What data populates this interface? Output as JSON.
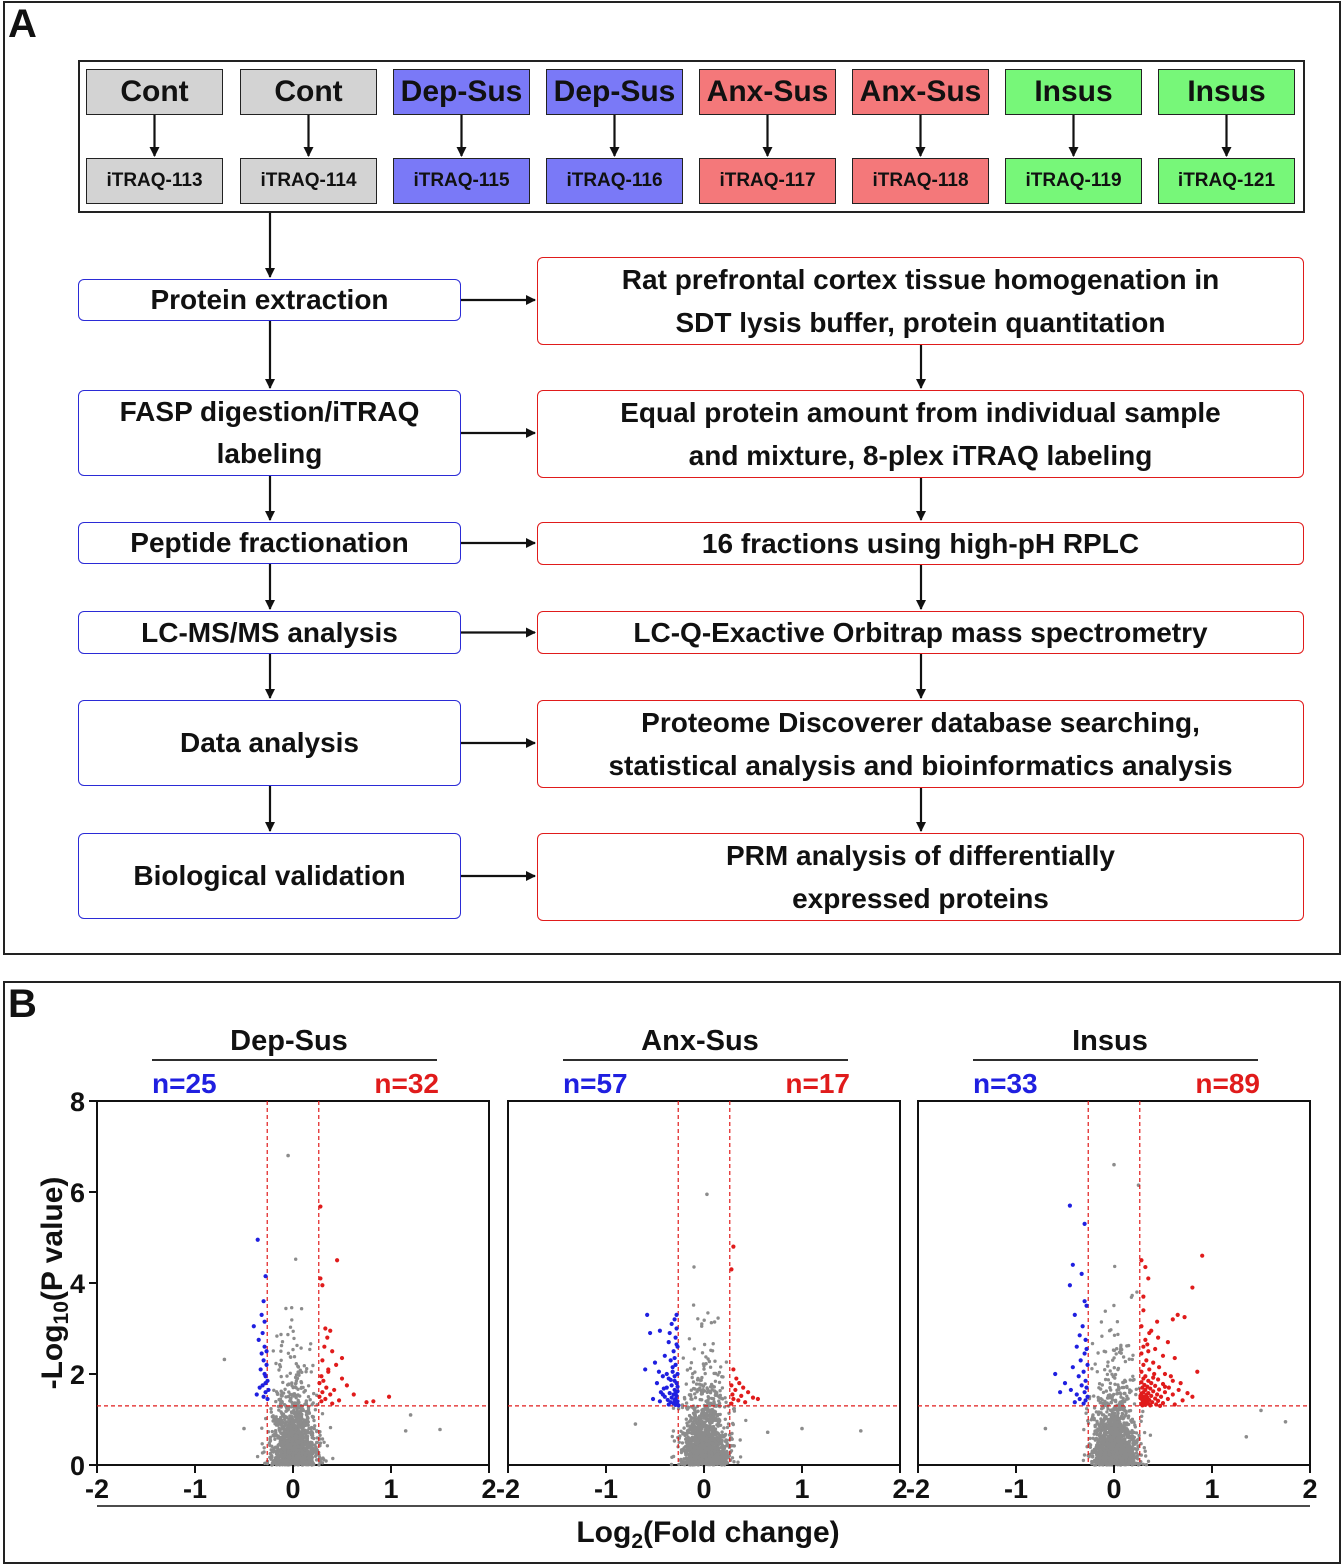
{
  "panel_a": {
    "letter": "A",
    "groups": [
      {
        "name": "Cont",
        "label": "iTRAQ-113",
        "color": "#d3d3d3"
      },
      {
        "name": "Cont",
        "label": "iTRAQ-114",
        "color": "#d3d3d3"
      },
      {
        "name": "Dep-Sus",
        "label": "iTRAQ-115",
        "color": "#7a79f7"
      },
      {
        "name": "Dep-Sus",
        "label": "iTRAQ-116",
        "color": "#7a79f7"
      },
      {
        "name": "Anx-Sus",
        "label": "iTRAQ-117",
        "color": "#f4787a"
      },
      {
        "name": "Anx-Sus",
        "label": "iTRAQ-118",
        "color": "#f4787a"
      },
      {
        "name": "Insus",
        "label": "iTRAQ-119",
        "color": "#77f779"
      },
      {
        "name": "Insus",
        "label": "iTRAQ-121",
        "color": "#77f779"
      }
    ],
    "steps": [
      {
        "title": [
          "Protein extraction"
        ],
        "detail": [
          "Rat prefrontal cortex tissue homogenation in",
          "SDT lysis buffer, protein quantitation"
        ]
      },
      {
        "title": [
          "FASP digestion/iTRAQ",
          "labeling"
        ],
        "detail": [
          "Equal protein amount from individual sample",
          "and mixture, 8-plex iTRAQ labeling"
        ]
      },
      {
        "title": [
          "Peptide fractionation"
        ],
        "detail": [
          "16 fractions using high-pH RPLC"
        ]
      },
      {
        "title": [
          "LC-MS/MS analysis"
        ],
        "detail": [
          "LC-Q-Exactive Orbitrap mass spectrometry"
        ]
      },
      {
        "title": [
          "Data analysis"
        ],
        "detail": [
          "Proteome Discoverer database searching,",
          "statistical analysis and bioinformatics analysis"
        ]
      },
      {
        "title": [
          "Biological validation"
        ],
        "detail": [
          "PRM analysis of differentially",
          "expressed proteins"
        ]
      }
    ]
  },
  "panel_b": {
    "letter": "B",
    "y_axis_label": "-Log10(P value)",
    "x_axis_label": "Log2(Fold change)",
    "colors": {
      "down": "#1f1fe0",
      "up": "#e01b1b",
      "ns": "#8c8c8c",
      "threshold": "#e01b1b"
    }
  },
  "chart_data": [
    {
      "type": "scatter",
      "title": "Dep-Sus",
      "n_down": "n=25",
      "n_up": "n=32",
      "xlim": [
        -2,
        2
      ],
      "ylim": [
        0,
        8
      ],
      "xticks": [
        "-2",
        "-1",
        "0",
        "1",
        "2"
      ],
      "yticks": [
        "0",
        "2",
        "4",
        "6",
        "8"
      ],
      "fc_threshold": [
        -0.263,
        0.263
      ],
      "p_threshold": 1.3,
      "highlight_down": [
        [
          -0.36,
          4.95
        ],
        [
          -0.28,
          4.15
        ],
        [
          -0.3,
          3.6
        ],
        [
          -0.32,
          3.3
        ],
        [
          -0.29,
          3.15
        ],
        [
          -0.4,
          3.05
        ],
        [
          -0.31,
          2.9
        ],
        [
          -0.35,
          2.75
        ],
        [
          -0.29,
          2.6
        ],
        [
          -0.27,
          2.5
        ],
        [
          -0.3,
          2.3
        ],
        [
          -0.33,
          2.1
        ],
        [
          -0.28,
          1.95
        ],
        [
          -0.26,
          1.85
        ],
        [
          -0.31,
          1.75
        ],
        [
          -0.34,
          1.7
        ],
        [
          -0.28,
          1.6
        ],
        [
          -0.3,
          1.5
        ],
        [
          -0.26,
          1.45
        ],
        [
          -0.29,
          2.0
        ],
        [
          -0.27,
          2.2
        ],
        [
          -0.37,
          1.55
        ],
        [
          -0.32,
          2.45
        ],
        [
          -0.28,
          1.8
        ],
        [
          -0.25,
          1.65
        ]
      ],
      "highlight_up": [
        [
          0.28,
          5.68
        ],
        [
          0.45,
          4.5
        ],
        [
          0.28,
          4.1
        ],
        [
          0.3,
          3.95
        ],
        [
          0.33,
          3.0
        ],
        [
          0.38,
          2.95
        ],
        [
          0.35,
          2.8
        ],
        [
          0.32,
          2.6
        ],
        [
          0.4,
          2.5
        ],
        [
          0.3,
          2.3
        ],
        [
          0.44,
          2.2
        ],
        [
          0.36,
          2.1
        ],
        [
          0.29,
          1.95
        ],
        [
          0.31,
          1.85
        ],
        [
          0.5,
          1.9
        ],
        [
          0.27,
          1.8
        ],
        [
          0.34,
          1.7
        ],
        [
          0.42,
          1.65
        ],
        [
          0.3,
          1.6
        ],
        [
          0.55,
          1.75
        ],
        [
          0.38,
          1.55
        ],
        [
          0.27,
          1.5
        ],
        [
          0.62,
          1.55
        ],
        [
          0.33,
          1.45
        ],
        [
          0.47,
          1.42
        ],
        [
          0.29,
          1.4
        ],
        [
          0.75,
          1.38
        ],
        [
          0.4,
          1.35
        ],
        [
          0.98,
          1.5
        ],
        [
          0.82,
          1.4
        ],
        [
          0.36,
          2.05
        ],
        [
          0.5,
          2.35
        ]
      ],
      "extra_ns": [
        [
          -0.7,
          2.32
        ],
        [
          -0.05,
          6.8
        ],
        [
          1.2,
          1.1
        ],
        [
          1.5,
          0.78
        ],
        [
          -0.5,
          0.8
        ],
        [
          1.15,
          0.75
        ]
      ]
    },
    {
      "type": "scatter",
      "title": "Anx-Sus",
      "n_down": "n=57",
      "n_up": "n=17",
      "xlim": [
        -2,
        2
      ],
      "ylim": [
        0,
        8
      ],
      "xticks": [
        "-2",
        "-1",
        "0",
        "1",
        "2"
      ],
      "yticks": [
        "0",
        "2",
        "4",
        "6",
        "8"
      ],
      "fc_threshold": [
        -0.263,
        0.263
      ],
      "p_threshold": 1.3,
      "highlight_down": [
        [
          -0.28,
          3.3
        ],
        [
          -0.3,
          3.2
        ],
        [
          -0.33,
          3.1
        ],
        [
          -0.58,
          3.3
        ],
        [
          -0.55,
          2.9
        ],
        [
          -0.45,
          2.95
        ],
        [
          -0.36,
          2.7
        ],
        [
          -0.29,
          2.8
        ],
        [
          -0.31,
          2.5
        ],
        [
          -0.6,
          2.1
        ],
        [
          -0.27,
          2.6
        ],
        [
          -0.4,
          2.4
        ],
        [
          -0.34,
          2.3
        ],
        [
          -0.29,
          2.2
        ],
        [
          -0.5,
          2.25
        ],
        [
          -0.32,
          2.05
        ],
        [
          -0.27,
          2.0
        ],
        [
          -0.42,
          1.95
        ],
        [
          -0.36,
          1.9
        ],
        [
          -0.3,
          1.85
        ],
        [
          -0.28,
          1.8
        ],
        [
          -0.48,
          1.8
        ],
        [
          -0.33,
          1.75
        ],
        [
          -0.38,
          1.7
        ],
        [
          -0.3,
          1.65
        ],
        [
          -0.27,
          1.62
        ],
        [
          -0.44,
          1.6
        ],
        [
          -0.35,
          1.58
        ],
        [
          -0.31,
          1.55
        ],
        [
          -0.28,
          1.52
        ],
        [
          -0.4,
          1.5
        ],
        [
          -0.33,
          1.48
        ],
        [
          -0.29,
          1.45
        ],
        [
          -0.37,
          1.43
        ],
        [
          -0.3,
          1.42
        ],
        [
          -0.27,
          1.4
        ],
        [
          -0.52,
          1.45
        ],
        [
          -0.34,
          1.38
        ],
        [
          -0.28,
          1.36
        ],
        [
          -0.31,
          1.35
        ],
        [
          -0.45,
          1.4
        ],
        [
          -0.36,
          1.33
        ],
        [
          -0.29,
          1.32
        ],
        [
          -0.26,
          1.31
        ],
        [
          -0.42,
          1.55
        ],
        [
          -0.3,
          2.35
        ],
        [
          -0.28,
          2.65
        ],
        [
          -0.35,
          2.9
        ],
        [
          -0.28,
          3.0
        ],
        [
          -0.32,
          2.15
        ],
        [
          -0.38,
          2.0
        ],
        [
          -0.27,
          1.72
        ],
        [
          -0.41,
          1.68
        ],
        [
          -0.3,
          1.95
        ],
        [
          -0.46,
          2.05
        ],
        [
          -0.34,
          1.87
        ],
        [
          -0.29,
          1.57
        ]
      ],
      "highlight_up": [
        [
          0.3,
          4.8
        ],
        [
          0.28,
          4.3
        ],
        [
          0.3,
          2.1
        ],
        [
          0.33,
          1.9
        ],
        [
          0.36,
          1.8
        ],
        [
          0.28,
          1.75
        ],
        [
          0.4,
          1.7
        ],
        [
          0.32,
          1.65
        ],
        [
          0.45,
          1.6
        ],
        [
          0.29,
          1.55
        ],
        [
          0.38,
          1.52
        ],
        [
          0.5,
          1.48
        ],
        [
          0.3,
          1.45
        ],
        [
          0.35,
          1.42
        ],
        [
          0.42,
          1.38
        ],
        [
          0.28,
          1.35
        ],
        [
          0.55,
          1.45
        ]
      ],
      "extra_ns": [
        [
          0.03,
          5.95
        ],
        [
          1.6,
          0.75
        ],
        [
          1.0,
          0.8
        ],
        [
          -0.7,
          0.9
        ],
        [
          0.65,
          0.72
        ]
      ]
    },
    {
      "type": "scatter",
      "title": "Insus",
      "n_down": "n=33",
      "n_up": "n=89",
      "xlim": [
        -2,
        2
      ],
      "ylim": [
        0,
        8
      ],
      "xticks": [
        "-2",
        "-1",
        "0",
        "1",
        "2"
      ],
      "yticks": [
        "0",
        "2",
        "4",
        "6",
        "8"
      ],
      "fc_threshold": [
        -0.263,
        0.263
      ],
      "p_threshold": 1.3,
      "highlight_down": [
        [
          -0.45,
          5.7
        ],
        [
          -0.3,
          5.3
        ],
        [
          -0.42,
          4.4
        ],
        [
          -0.33,
          4.2
        ],
        [
          -0.45,
          3.95
        ],
        [
          -0.3,
          3.6
        ],
        [
          -0.28,
          3.5
        ],
        [
          -0.4,
          3.3
        ],
        [
          -0.32,
          3.05
        ],
        [
          -0.35,
          2.85
        ],
        [
          -0.29,
          2.75
        ],
        [
          -0.38,
          2.6
        ],
        [
          -0.3,
          2.45
        ],
        [
          -0.34,
          2.3
        ],
        [
          -0.27,
          2.2
        ],
        [
          -0.42,
          2.15
        ],
        [
          -0.31,
          2.05
        ],
        [
          -0.6,
          2.0
        ],
        [
          -0.36,
          1.95
        ],
        [
          -0.29,
          1.85
        ],
        [
          -0.5,
          1.8
        ],
        [
          -0.33,
          1.75
        ],
        [
          -0.28,
          1.7
        ],
        [
          -0.44,
          1.65
        ],
        [
          -0.3,
          1.6
        ],
        [
          -0.38,
          1.55
        ],
        [
          -0.27,
          1.5
        ],
        [
          -0.35,
          1.45
        ],
        [
          -0.29,
          1.42
        ],
        [
          -0.4,
          1.38
        ],
        [
          -0.31,
          1.35
        ],
        [
          -0.55,
          1.6
        ],
        [
          -0.28,
          2.55
        ]
      ],
      "highlight_up": [
        [
          0.9,
          4.6
        ],
        [
          0.28,
          4.5
        ],
        [
          0.32,
          4.35
        ],
        [
          0.35,
          4.1
        ],
        [
          0.8,
          3.9
        ],
        [
          0.3,
          3.7
        ],
        [
          0.65,
          3.3
        ],
        [
          0.6,
          3.2
        ],
        [
          0.72,
          3.25
        ],
        [
          0.28,
          3.05
        ],
        [
          0.38,
          2.95
        ],
        [
          0.45,
          2.8
        ],
        [
          0.32,
          2.75
        ],
        [
          0.55,
          2.7
        ],
        [
          0.3,
          2.6
        ],
        [
          0.42,
          2.55
        ],
        [
          0.35,
          2.5
        ],
        [
          0.28,
          2.45
        ],
        [
          0.5,
          2.4
        ],
        [
          0.62,
          2.35
        ],
        [
          0.33,
          2.3
        ],
        [
          0.4,
          2.25
        ],
        [
          0.3,
          2.2
        ],
        [
          0.46,
          2.15
        ],
        [
          0.36,
          2.1
        ],
        [
          0.28,
          2.05
        ],
        [
          0.52,
          2.0
        ],
        [
          0.32,
          1.95
        ],
        [
          0.85,
          2.05
        ],
        [
          0.4,
          1.92
        ],
        [
          0.3,
          1.9
        ],
        [
          0.45,
          1.88
        ],
        [
          0.35,
          1.85
        ],
        [
          0.6,
          1.85
        ],
        [
          0.28,
          1.82
        ],
        [
          0.38,
          1.8
        ],
        [
          0.5,
          1.78
        ],
        [
          0.31,
          1.76
        ],
        [
          0.42,
          1.74
        ],
        [
          0.34,
          1.72
        ],
        [
          0.56,
          1.7
        ],
        [
          0.29,
          1.7
        ],
        [
          0.37,
          1.68
        ],
        [
          0.46,
          1.66
        ],
        [
          0.32,
          1.65
        ],
        [
          0.66,
          1.65
        ],
        [
          0.4,
          1.62
        ],
        [
          0.3,
          1.6
        ],
        [
          0.52,
          1.6
        ],
        [
          0.35,
          1.58
        ],
        [
          0.28,
          1.57
        ],
        [
          0.44,
          1.55
        ],
        [
          0.33,
          1.54
        ],
        [
          0.6,
          1.55
        ],
        [
          0.38,
          1.52
        ],
        [
          0.3,
          1.5
        ],
        [
          0.48,
          1.5
        ],
        [
          0.34,
          1.48
        ],
        [
          0.27,
          1.47
        ],
        [
          0.42,
          1.46
        ],
        [
          0.31,
          1.45
        ],
        [
          0.55,
          1.45
        ],
        [
          0.36,
          1.43
        ],
        [
          0.29,
          1.42
        ],
        [
          0.45,
          1.41
        ],
        [
          0.33,
          1.4
        ],
        [
          0.7,
          1.42
        ],
        [
          0.39,
          1.38
        ],
        [
          0.3,
          1.37
        ],
        [
          0.5,
          1.36
        ],
        [
          0.35,
          1.35
        ],
        [
          0.28,
          1.34
        ],
        [
          0.43,
          1.33
        ],
        [
          0.32,
          1.32
        ],
        [
          0.62,
          1.33
        ],
        [
          0.37,
          1.31
        ],
        [
          0.29,
          1.31
        ],
        [
          0.47,
          1.3
        ],
        [
          0.34,
          2.65
        ],
        [
          0.41,
          2.0
        ],
        [
          0.58,
          1.95
        ],
        [
          0.27,
          1.52
        ],
        [
          0.52,
          1.72
        ],
        [
          0.75,
          1.58
        ],
        [
          0.3,
          3.4
        ],
        [
          0.44,
          3.15
        ],
        [
          0.36,
          2.9
        ],
        [
          0.68,
          1.8
        ],
        [
          0.8,
          1.5
        ]
      ],
      "extra_ns": [
        [
          0.0,
          6.6
        ],
        [
          0.25,
          6.15
        ],
        [
          1.35,
          0.62
        ],
        [
          1.5,
          1.2
        ],
        [
          -0.7,
          0.8
        ],
        [
          1.75,
          0.95
        ]
      ]
    }
  ]
}
